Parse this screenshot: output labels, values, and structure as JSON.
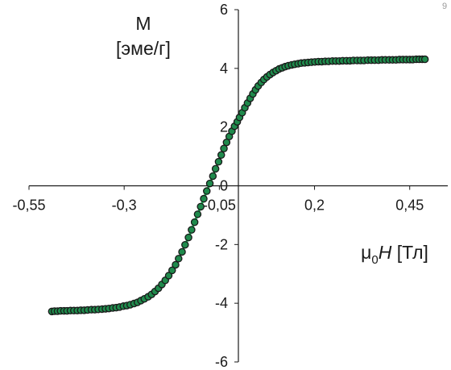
{
  "chart_data": {
    "type": "scatter",
    "title": "",
    "ylabel_line1": "M",
    "ylabel_line2": "[эме/г]",
    "xlabel_symbol": "μ",
    "xlabel_subscript": "0",
    "xlabel_var": "H",
    "xlabel_unit": " [Тл]",
    "corner_mark": "9",
    "xlim": [
      -0.55,
      0.55
    ],
    "ylim": [
      -6,
      6
    ],
    "x_ticks": [
      -0.55,
      -0.3,
      -0.05,
      0.2,
      0.45
    ],
    "x_tick_labels": [
      "-0,55",
      "-0,3",
      "-0,05",
      "0,2",
      "0,45"
    ],
    "y_ticks": [
      -6,
      -4,
      -2,
      0,
      2,
      4,
      6
    ],
    "y_tick_labels": [
      "-6",
      "-4",
      "-2",
      "0",
      "2",
      "4",
      "6"
    ],
    "grid": false,
    "legend": "none",
    "colors": {
      "marker_fill": "#1f8a4c",
      "marker_edge": "#1a1a1a",
      "curve": "#19c05a",
      "axis": "#1a1a1a"
    },
    "series": [
      {
        "x": [
          -0.49,
          -0.483,
          -0.475,
          -0.467,
          -0.458,
          -0.45,
          -0.441,
          -0.432,
          -0.423,
          -0.414,
          -0.405,
          -0.396,
          -0.386,
          -0.377,
          -0.368,
          -0.358,
          -0.349,
          -0.34,
          -0.33,
          -0.321,
          -0.312,
          -0.302,
          -0.293,
          -0.284,
          -0.274,
          -0.265,
          -0.256,
          -0.247,
          -0.237,
          -0.228,
          -0.219,
          -0.21,
          -0.201,
          -0.192,
          -0.183,
          -0.174,
          -0.165,
          -0.157,
          -0.148,
          -0.14,
          -0.131,
          -0.123,
          -0.115,
          -0.107,
          -0.099,
          -0.091,
          -0.083,
          -0.075,
          -0.067,
          -0.06,
          -0.052,
          -0.045,
          -0.038,
          -0.031,
          -0.024,
          -0.017,
          -0.01,
          -0.003,
          0.003,
          0.01,
          0.017,
          0.024,
          0.031,
          0.038,
          0.045,
          0.052,
          0.06,
          0.067,
          0.075,
          0.083,
          0.091,
          0.099,
          0.107,
          0.115,
          0.123,
          0.131,
          0.14,
          0.148,
          0.157,
          0.165,
          0.174,
          0.183,
          0.192,
          0.201,
          0.21,
          0.219,
          0.228,
          0.237,
          0.247,
          0.256,
          0.265,
          0.274,
          0.284,
          0.293,
          0.302,
          0.312,
          0.321,
          0.33,
          0.34,
          0.349,
          0.358,
          0.368,
          0.377,
          0.386,
          0.396,
          0.405,
          0.414,
          0.423,
          0.432,
          0.441,
          0.45,
          0.458,
          0.467,
          0.475,
          0.483,
          0.49
        ],
        "y": [
          -4.28,
          -4.27,
          -4.27,
          -4.26,
          -4.26,
          -4.26,
          -4.25,
          -4.25,
          -4.25,
          -4.24,
          -4.24,
          -4.23,
          -4.22,
          -4.22,
          -4.21,
          -4.2,
          -4.19,
          -4.18,
          -4.16,
          -4.15,
          -4.13,
          -4.1,
          -4.08,
          -4.05,
          -4.01,
          -3.97,
          -3.91,
          -3.85,
          -3.78,
          -3.7,
          -3.6,
          -3.49,
          -3.36,
          -3.22,
          -3.06,
          -2.88,
          -2.69,
          -2.48,
          -2.25,
          -2.01,
          -1.76,
          -1.5,
          -1.24,
          -0.97,
          -0.71,
          -0.44,
          -0.18,
          0.08,
          0.33,
          0.58,
          0.82,
          1.05,
          1.27,
          1.48,
          1.68,
          1.86,
          2.03,
          2.18,
          2.33,
          2.49,
          2.66,
          2.82,
          2.98,
          3.13,
          3.27,
          3.4,
          3.52,
          3.62,
          3.71,
          3.79,
          3.86,
          3.92,
          3.98,
          4.02,
          4.06,
          4.09,
          4.12,
          4.14,
          4.16,
          4.18,
          4.19,
          4.2,
          4.21,
          4.22,
          4.23,
          4.23,
          4.24,
          4.24,
          4.25,
          4.25,
          4.25,
          4.26,
          4.26,
          4.26,
          4.27,
          4.27,
          4.27,
          4.27,
          4.28,
          4.28,
          4.28,
          4.28,
          4.29,
          4.29,
          4.29,
          4.29,
          4.29,
          4.3,
          4.3,
          4.3,
          4.3,
          4.3,
          4.31,
          4.31,
          4.31,
          4.31
        ]
      }
    ]
  }
}
